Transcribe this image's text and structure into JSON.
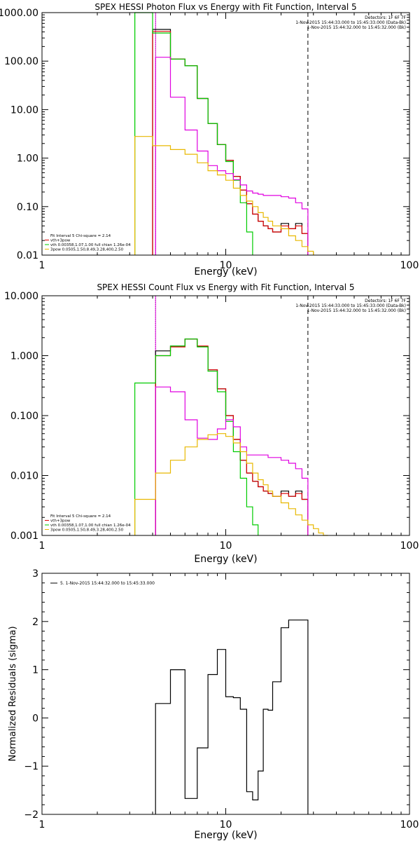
{
  "chart_data": [
    {
      "type": "line",
      "title": "SPEX HESSI Photon Flux vs Energy with Fit Function, Interval 5",
      "xlabel": "Energy (keV)",
      "ylabel": "",
      "xscale": "log",
      "yscale": "log",
      "xlim": [
        1,
        100
      ],
      "ylim": [
        0.01,
        1000
      ],
      "xticks": [
        "1",
        "10",
        "100"
      ],
      "yticks": [
        "0.01",
        "0.10",
        "1.00",
        "10.00",
        "100.00",
        "1000.00"
      ],
      "header_lines": [
        "Detectors: 1F 6F 7F",
        "1-Nov-2015 15:44:33.000 to 15:45:33.000 (Data-Bk)",
        "1-Nov-2015 15:44:32.000 to 15:45:32.000 (Bk)"
      ],
      "header_colors": [
        "#000000",
        "#000000",
        "#e000e0"
      ],
      "fit_lines": [
        "Fit Interval 5   Chi-square = 2.14",
        "vth+3pow",
        "vth 0.00358,1.07,1.00  full chian 1.26e-04",
        "3pow 0.0505,1.50,8.49,3.28,400,2.50"
      ],
      "fit_colors": [
        "#000000",
        "#dd0000",
        "#00cc00",
        "#e8b800"
      ],
      "vlines": [
        {
          "x": 3.2,
          "color": "#00cc00",
          "style": "solid"
        },
        {
          "x": 4.15,
          "color": "#00cc00",
          "style": "dotted"
        },
        {
          "x": 4.15,
          "color": "#e000e0",
          "style": "solid"
        },
        {
          "x": 28,
          "color": "#000000",
          "style": "dashed"
        }
      ],
      "series": [
        {
          "color": "#000000",
          "edges": [
            4,
            5,
            6,
            7,
            8,
            9,
            10,
            11,
            12,
            13,
            14,
            15,
            16,
            17,
            18,
            20,
            22,
            24,
            26,
            28
          ],
          "values": [
            450,
            110,
            80,
            17,
            5.2,
            1.9,
            0.9,
            0.42,
            0.22,
            0.115,
            0.07,
            0.05,
            0.04,
            0.035,
            0.03,
            0.045,
            0.035,
            0.045,
            0.028
          ]
        },
        {
          "color": "#dd0000",
          "edges": [
            4,
            5,
            6,
            7,
            8,
            9,
            10,
            11,
            12,
            13,
            14,
            15,
            16,
            17,
            18,
            20,
            22,
            24,
            26,
            28
          ],
          "values": [
            410,
            110,
            80,
            17,
            5.2,
            1.9,
            0.9,
            0.42,
            0.22,
            0.115,
            0.07,
            0.05,
            0.04,
            0.035,
            0.03,
            0.04,
            0.035,
            0.04,
            0.028
          ]
        },
        {
          "color": "#00cc00",
          "edges": [
            3.2,
            4,
            5,
            6,
            7,
            8,
            9,
            10,
            11,
            12,
            13,
            14
          ],
          "values": [
            1000,
            380,
            110,
            80,
            17,
            5.2,
            1.9,
            0.85,
            0.35,
            0.12,
            0.03,
            0.01
          ]
        },
        {
          "color": "#e000e0",
          "edges": [
            4.15,
            5,
            6,
            7,
            8,
            9,
            10,
            11,
            12,
            13,
            14,
            15,
            16,
            17,
            18,
            20,
            22,
            24,
            26,
            28
          ],
          "values": [
            120,
            18,
            3.8,
            1.4,
            0.7,
            0.55,
            0.48,
            0.36,
            0.28,
            0.21,
            0.19,
            0.18,
            0.17,
            0.17,
            0.17,
            0.16,
            0.15,
            0.12,
            0.09
          ]
        },
        {
          "color": "#e8b800",
          "edges": [
            3.2,
            4,
            5,
            6,
            7,
            8,
            9,
            10,
            11,
            12,
            13,
            14,
            15,
            16,
            17,
            18,
            20,
            22,
            24,
            26,
            28,
            30
          ],
          "values": [
            2.8,
            1.8,
            1.5,
            1.2,
            0.8,
            0.55,
            0.45,
            0.35,
            0.24,
            0.17,
            0.13,
            0.1,
            0.075,
            0.06,
            0.05,
            0.04,
            0.035,
            0.025,
            0.02,
            0.015,
            0.012,
            0.01
          ]
        }
      ]
    },
    {
      "type": "line",
      "title": "SPEX HESSI Count Flux vs Energy with Fit Function, Interval 5",
      "xlabel": "Energy (keV)",
      "ylabel": "",
      "xscale": "log",
      "yscale": "log",
      "xlim": [
        1,
        100
      ],
      "ylim": [
        0.001,
        10
      ],
      "xticks": [
        "1",
        "10",
        "100"
      ],
      "yticks": [
        "0.001",
        "0.010",
        "0.100",
        "1.000",
        "10.000"
      ],
      "header_lines": [
        "Detectors: 1F 6F 7F",
        "1-Nov-2015 15:44:33.000 to 15:45:33.000 (Data-Bk)",
        "1-Nov-2015 15:44:32.000 to 15:45:32.000 (Bk)"
      ],
      "header_colors": [
        "#000000",
        "#000000",
        "#e000e0"
      ],
      "fit_lines": [
        "Fit Interval 5   Chi-square = 2.14",
        "vth+3pow",
        "vth 0.00358,1.07,1.00  full chian 1.26e-04",
        "3pow 0.0505,1.50,8.49,3.28,400,2.50"
      ],
      "fit_colors": [
        "#000000",
        "#dd0000",
        "#00cc00",
        "#e8b800"
      ],
      "vlines": [
        {
          "x": 4.15,
          "color": "#000000",
          "style": "dotted"
        },
        {
          "x": 4.15,
          "color": "#e000e0",
          "style": "solid"
        },
        {
          "x": 28,
          "color": "#000000",
          "style": "dashed"
        }
      ],
      "series": [
        {
          "color": "#000000",
          "edges": [
            4.15,
            5,
            6,
            7,
            8,
            9,
            10,
            11,
            12,
            13,
            14,
            15,
            16,
            17,
            18,
            20,
            22,
            24,
            26,
            28
          ],
          "values": [
            1.2,
            1.45,
            1.9,
            1.42,
            0.58,
            0.28,
            0.1,
            0.04,
            0.018,
            0.011,
            0.008,
            0.0065,
            0.0055,
            0.005,
            0.0045,
            0.0055,
            0.0045,
            0.0055,
            0.004
          ]
        },
        {
          "color": "#dd0000",
          "edges": [
            4.15,
            5,
            6,
            7,
            8,
            9,
            10,
            11,
            12,
            13,
            14,
            15,
            16,
            17,
            18,
            20,
            22,
            24,
            26,
            28
          ],
          "values": [
            1.0,
            1.4,
            1.9,
            1.45,
            0.58,
            0.28,
            0.1,
            0.04,
            0.018,
            0.011,
            0.008,
            0.0065,
            0.0055,
            0.005,
            0.0045,
            0.005,
            0.0045,
            0.005,
            0.004
          ]
        },
        {
          "color": "#00cc00",
          "edges": [
            3.2,
            4.15,
            5,
            6,
            7,
            8,
            9,
            10,
            11,
            12,
            13,
            14,
            15
          ],
          "values": [
            0.35,
            1.0,
            1.45,
            1.9,
            1.4,
            0.55,
            0.25,
            0.08,
            0.025,
            0.009,
            0.003,
            0.0015,
            0.001
          ]
        },
        {
          "color": "#e000e0",
          "edges": [
            4.15,
            5,
            6,
            7,
            8,
            9,
            10,
            11,
            12,
            13,
            14,
            15,
            16,
            17,
            18,
            20,
            22,
            24,
            26,
            28
          ],
          "values": [
            0.3,
            0.25,
            0.085,
            0.042,
            0.04,
            0.06,
            0.085,
            0.065,
            0.03,
            0.022,
            0.022,
            0.022,
            0.022,
            0.02,
            0.02,
            0.018,
            0.016,
            0.013,
            0.009
          ]
        },
        {
          "color": "#e8b800",
          "edges": [
            3.2,
            4.15,
            5,
            6,
            7,
            8,
            9,
            10,
            11,
            12,
            13,
            14,
            15,
            16,
            17,
            18,
            20,
            22,
            24,
            26,
            28,
            30,
            32,
            34,
            36
          ],
          "values": [
            0.004,
            0.011,
            0.018,
            0.03,
            0.04,
            0.048,
            0.05,
            0.045,
            0.035,
            0.025,
            0.016,
            0.011,
            0.0085,
            0.007,
            0.0055,
            0.0045,
            0.0035,
            0.0028,
            0.0022,
            0.0018,
            0.0015,
            0.0013,
            0.0011,
            0.001
          ]
        }
      ]
    },
    {
      "type": "line",
      "title": "",
      "xlabel": "Energy (keV)",
      "ylabel": "Normalized Residuals (sigma)",
      "xscale": "log",
      "yscale": "linear",
      "xlim": [
        1,
        100
      ],
      "ylim": [
        -2,
        3
      ],
      "xticks": [
        "1",
        "10",
        "100"
      ],
      "yticks": [
        "−2",
        "−1",
        "0",
        "1",
        "2",
        "3"
      ],
      "legend_line": "5.  1-Nov-2015 15:44:32.000 to 15:45:33.000",
      "series": [
        {
          "color": "#000000",
          "edges": [
            4.15,
            5,
            6,
            7,
            8,
            9,
            10,
            11,
            12,
            13,
            14,
            15,
            16,
            17,
            18,
            20,
            22,
            24,
            26,
            28
          ],
          "values": [
            0.3,
            1.0,
            -1.67,
            -0.62,
            0.9,
            1.42,
            0.44,
            0.42,
            0.18,
            -1.53,
            -1.7,
            -1.1,
            0.18,
            0.16,
            0.75,
            1.87,
            2.03,
            2.03,
            2.03
          ]
        }
      ]
    }
  ]
}
